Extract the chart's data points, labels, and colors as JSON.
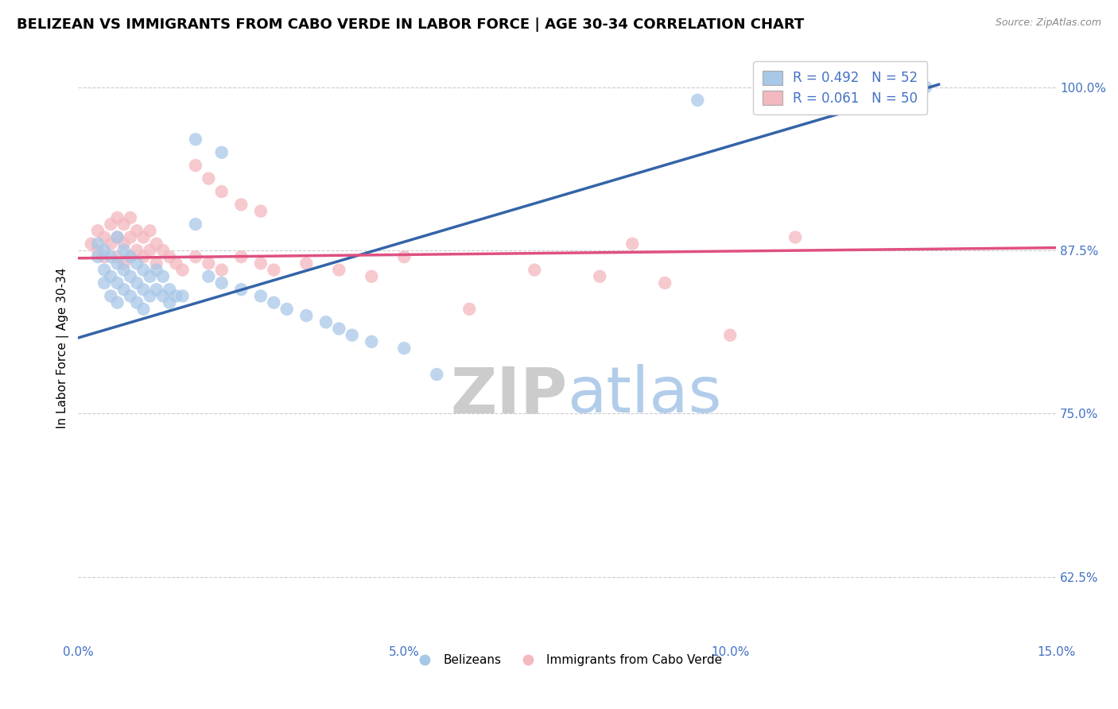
{
  "title": "BELIZEAN VS IMMIGRANTS FROM CABO VERDE IN LABOR FORCE | AGE 30-34 CORRELATION CHART",
  "source_text": "Source: ZipAtlas.com",
  "ylabel": "In Labor Force | Age 30-34",
  "xlim": [
    0.0,
    0.15
  ],
  "ylim": [
    0.575,
    1.025
  ],
  "xticks": [
    0.0,
    0.05,
    0.1,
    0.15
  ],
  "xticklabels": [
    "0.0%",
    "5.0%",
    "10.0%",
    "15.0%"
  ],
  "yticks": [
    0.625,
    0.75,
    0.875,
    1.0
  ],
  "yticklabels": [
    "62.5%",
    "75.0%",
    "87.5%",
    "100.0%"
  ],
  "blue_R": 0.492,
  "blue_N": 52,
  "pink_R": 0.061,
  "pink_N": 50,
  "blue_color": "#a8c8e8",
  "pink_color": "#f4b8c0",
  "blue_line_color": "#3464a8",
  "pink_line_color": "#e05080",
  "legend_color": "#4472c4",
  "tick_color": "#4472c4",
  "legend_label_blue": "Belizeans",
  "legend_label_pink": "Immigrants from Cabo Verde",
  "blue_trend_x": [
    0.0,
    0.132
  ],
  "blue_trend_y": [
    0.808,
    1.002
  ],
  "pink_trend_x": [
    0.0,
    0.15
  ],
  "pink_trend_y": [
    0.869,
    0.877
  ],
  "blue_x": [
    0.003,
    0.003,
    0.004,
    0.004,
    0.004,
    0.005,
    0.005,
    0.005,
    0.006,
    0.006,
    0.006,
    0.006,
    0.007,
    0.007,
    0.007,
    0.008,
    0.008,
    0.008,
    0.009,
    0.009,
    0.009,
    0.01,
    0.01,
    0.01,
    0.011,
    0.011,
    0.012,
    0.012,
    0.013,
    0.013,
    0.014,
    0.014,
    0.015,
    0.016,
    0.018,
    0.02,
    0.022,
    0.025,
    0.028,
    0.03,
    0.032,
    0.035,
    0.038,
    0.04,
    0.042,
    0.045,
    0.05,
    0.055,
    0.095,
    0.13,
    0.018,
    0.022
  ],
  "blue_y": [
    0.88,
    0.87,
    0.875,
    0.86,
    0.85,
    0.87,
    0.855,
    0.84,
    0.885,
    0.865,
    0.85,
    0.835,
    0.875,
    0.86,
    0.845,
    0.87,
    0.855,
    0.84,
    0.865,
    0.85,
    0.835,
    0.86,
    0.845,
    0.83,
    0.855,
    0.84,
    0.86,
    0.845,
    0.855,
    0.84,
    0.845,
    0.835,
    0.84,
    0.84,
    0.895,
    0.855,
    0.85,
    0.845,
    0.84,
    0.835,
    0.83,
    0.825,
    0.82,
    0.815,
    0.81,
    0.805,
    0.8,
    0.78,
    0.99,
    1.0,
    0.96,
    0.95
  ],
  "pink_x": [
    0.002,
    0.003,
    0.003,
    0.004,
    0.004,
    0.005,
    0.005,
    0.006,
    0.006,
    0.006,
    0.007,
    0.007,
    0.007,
    0.008,
    0.008,
    0.008,
    0.009,
    0.009,
    0.01,
    0.01,
    0.011,
    0.011,
    0.012,
    0.012,
    0.013,
    0.014,
    0.015,
    0.016,
    0.018,
    0.02,
    0.022,
    0.025,
    0.028,
    0.03,
    0.035,
    0.04,
    0.045,
    0.05,
    0.06,
    0.07,
    0.08,
    0.085,
    0.09,
    0.1,
    0.11,
    0.018,
    0.02,
    0.022,
    0.025,
    0.028
  ],
  "pink_y": [
    0.88,
    0.89,
    0.875,
    0.885,
    0.87,
    0.895,
    0.88,
    0.9,
    0.885,
    0.87,
    0.895,
    0.88,
    0.865,
    0.9,
    0.885,
    0.87,
    0.89,
    0.875,
    0.885,
    0.87,
    0.89,
    0.875,
    0.88,
    0.865,
    0.875,
    0.87,
    0.865,
    0.86,
    0.87,
    0.865,
    0.86,
    0.87,
    0.865,
    0.86,
    0.865,
    0.86,
    0.855,
    0.87,
    0.83,
    0.86,
    0.855,
    0.88,
    0.85,
    0.81,
    0.885,
    0.94,
    0.93,
    0.92,
    0.91,
    0.905
  ],
  "grid_color": "#cccccc",
  "background_color": "#ffffff",
  "title_fontsize": 13,
  "axis_tick_fontsize": 11,
  "ylabel_fontsize": 11,
  "legend_fontsize": 12
}
